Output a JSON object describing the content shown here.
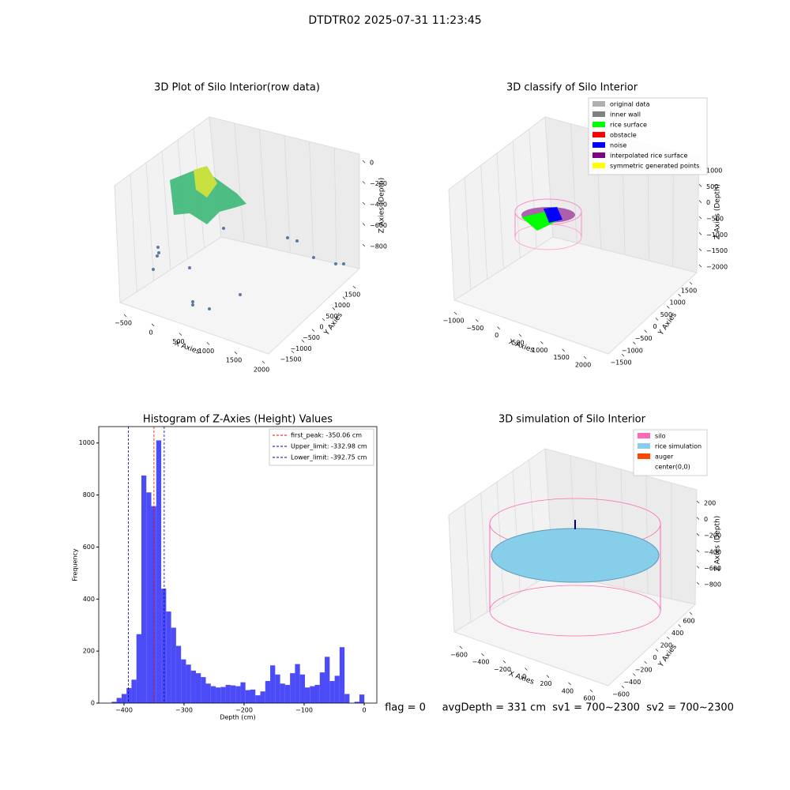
{
  "suptitle": "DTDTR02 2025-07-31 11:23:45",
  "status": "flag = 0     avgDepth = 331 cm  sv1 = 700~2300  sv2 = 700~2300",
  "chart_data": [
    {
      "type": "scatter3d",
      "title": "3D Plot of Silo Interior(row data)",
      "xlabel": "X Axies",
      "ylabel": "Y Axies",
      "zlabel": "Z Axies (Depth)",
      "xticks": [
        {
          "value": -500,
          "label": "−500"
        },
        0,
        500,
        1000,
        1500,
        2000
      ],
      "yticks": [
        {
          "value": -1500,
          "label": "−1500"
        },
        {
          "value": -1000,
          "label": "−1000"
        },
        {
          "value": -500,
          "label": "−500"
        },
        0,
        500,
        1000,
        1500
      ],
      "zticks": [
        0,
        {
          "value": -200,
          "label": "−200"
        },
        {
          "value": -400,
          "label": "−400"
        },
        {
          "value": -600,
          "label": "−600"
        },
        {
          "value": -800,
          "label": "−800"
        }
      ]
    },
    {
      "type": "scatter3d",
      "title": "3D classify of Silo Interior",
      "xlabel": "X Axies",
      "ylabel": "Y Axies",
      "zlabel": "Z Axies (Depth)",
      "xticks": [
        {
          "value": -1000,
          "label": "−1000"
        },
        {
          "value": -500,
          "label": "−500"
        },
        0,
        500,
        1000,
        1500,
        2000
      ],
      "yticks": [
        {
          "value": -1500,
          "label": "−1500"
        },
        {
          "value": -1000,
          "label": "−1000"
        },
        {
          "value": -500,
          "label": "−500"
        },
        0,
        500,
        1000,
        1500
      ],
      "zticks": [
        1000,
        500,
        0,
        {
          "value": -500,
          "label": "−500"
        },
        {
          "value": -1000,
          "label": "−1000"
        },
        {
          "value": -1500,
          "label": "−1500"
        },
        {
          "value": -2000,
          "label": "−2000"
        }
      ],
      "legend": [
        {
          "name": "original data",
          "color": "#b0b0b0"
        },
        {
          "name": "inner wall",
          "color": "#808080"
        },
        {
          "name": "rice surface",
          "color": "#00ff00"
        },
        {
          "name": "obstacle",
          "color": "#ff0000"
        },
        {
          "name": "noise",
          "color": "#0000ff"
        },
        {
          "name": "interpolated rice surface",
          "color": "#800080"
        },
        {
          "name": "symmetric generated points",
          "color": "#ffff00"
        }
      ]
    },
    {
      "type": "histogram",
      "title": "Histogram of Z-Axies (Height) Values",
      "xlabel": "Depth (cm)",
      "ylabel": "Frequency",
      "color": "#4b4bf8",
      "bins": [
        -420.5,
        -412.25,
        -404,
        -395.75,
        -387.5,
        -379.25,
        -371,
        -362.75,
        -354.5,
        -346.25,
        -338,
        -329.75,
        -321.5,
        -313.25,
        -305,
        -296.75,
        -288.5,
        -280.25,
        -272,
        -263.75,
        -255.5,
        -247.25,
        -239,
        -230.75,
        -222.5,
        -214.25,
        -206,
        -197.75,
        -189.5,
        -181.25,
        -173,
        -164.75,
        -156.5,
        -148.25,
        -140,
        -131.75,
        -123.5,
        -115.25,
        -107,
        -98.75,
        -90.5,
        -82.25,
        -74,
        -65.75,
        -57.5,
        -49.25,
        -41,
        -32.75,
        -24.5,
        -16.25,
        -8,
        0.25
      ],
      "values": [
        5,
        20,
        35,
        58,
        90,
        265,
        875,
        810,
        757,
        1010,
        440,
        352,
        290,
        220,
        168,
        148,
        125,
        115,
        100,
        75,
        65,
        60,
        62,
        70,
        68,
        65,
        80,
        50,
        52,
        30,
        45,
        85,
        145,
        110,
        75,
        70,
        115,
        150,
        110,
        60,
        65,
        70,
        118,
        178,
        85,
        105,
        215,
        35,
        0,
        5,
        33
      ],
      "xlim": [
        -442,
        21
      ],
      "ylim": [
        0,
        1063
      ],
      "xticks": [
        {
          "value": -400,
          "label": "−400"
        },
        {
          "value": -300,
          "label": "−300"
        },
        {
          "value": -200,
          "label": "−200"
        },
        {
          "value": -100,
          "label": "−100"
        },
        0
      ],
      "yticks": [
        0,
        200,
        400,
        600,
        800,
        1000
      ],
      "lines": [
        {
          "label": "first_peak: -350.06 cm",
          "value": -350.06,
          "color": "#ff0000"
        },
        {
          "label": "Upper_limit: -332.98 cm",
          "value": -332.98,
          "color": "#0000aa"
        },
        {
          "label": "Lower_limit: -392.75 cm",
          "value": -392.75,
          "color": "#0000aa"
        }
      ]
    },
    {
      "type": "surface3d",
      "title": "3D simulation of Silo Interior",
      "xlabel": "X Axies",
      "ylabel": "Y Axies",
      "zlabel": "Z Axies (Depth)",
      "xticks": [
        {
          "value": -600,
          "label": "−600"
        },
        {
          "value": -400,
          "label": "−400"
        },
        {
          "value": -200,
          "label": "−200"
        },
        0,
        200,
        400,
        600
      ],
      "yticks": [
        {
          "value": -600,
          "label": "−600"
        },
        {
          "value": -400,
          "label": "−400"
        },
        {
          "value": -200,
          "label": "−200"
        },
        0,
        200,
        400,
        600
      ],
      "zticks": [
        200,
        0,
        {
          "value": -200,
          "label": "−200"
        },
        {
          "value": -400,
          "label": "−400"
        },
        {
          "value": -600,
          "label": "−600"
        },
        {
          "value": -800,
          "label": "−800"
        }
      ],
      "legend": [
        {
          "name": "silo",
          "color": "#ff69b4"
        },
        {
          "name": "rice simulation",
          "color": "#87ceeb"
        },
        {
          "name": "auger",
          "color": "#ff4500"
        },
        {
          "name": "center(0,0)",
          "color": "#ffffff"
        }
      ]
    }
  ]
}
